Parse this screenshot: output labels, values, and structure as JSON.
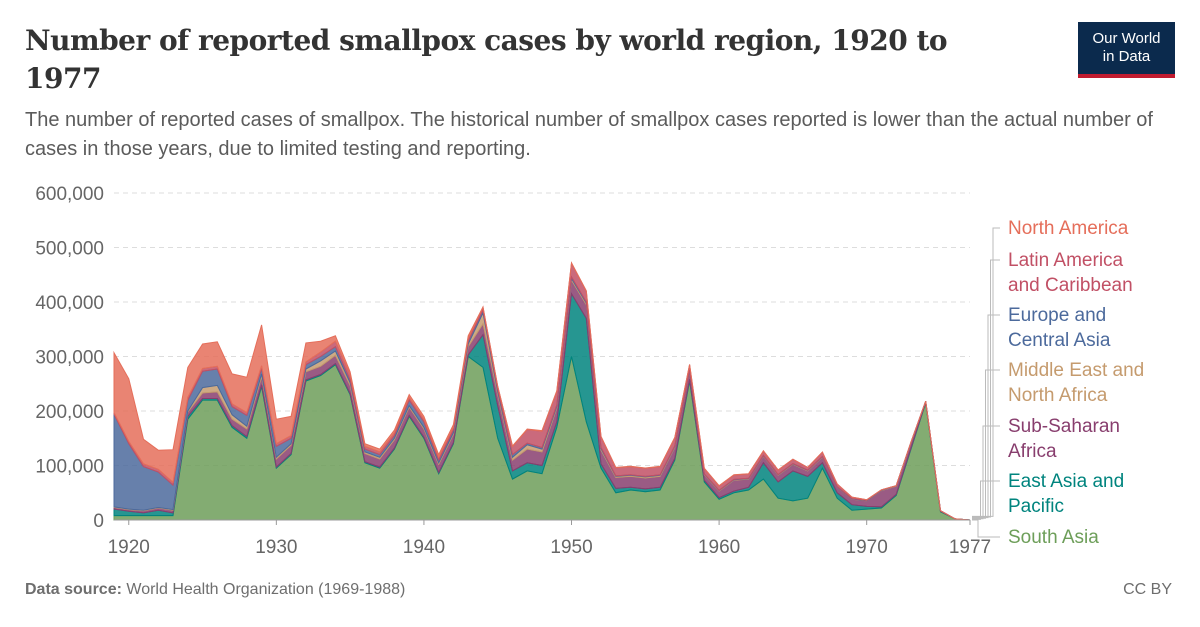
{
  "header": {
    "title": "Number of reported smallpox cases by world region, 1920 to 1977",
    "subtitle": "The number of reported cases of smallpox. The historical number of smallpox cases reported is lower than the actual number of cases in those years, due to limited testing and reporting.",
    "logo_line1": "Our World",
    "logo_line2": "in Data"
  },
  "footer": {
    "source_label": "Data source:",
    "source_text": "World Health Organization (1969-1988)",
    "license": "CC BY"
  },
  "chart_data": {
    "type": "area",
    "stacked": true,
    "title": "Number of reported smallpox cases by world region, 1920 to 1977",
    "xlabel": "",
    "ylabel": "",
    "xlim": [
      1919,
      1977
    ],
    "ylim": [
      0,
      600000
    ],
    "y_ticks": [
      0,
      100000,
      200000,
      300000,
      400000,
      500000,
      600000
    ],
    "y_tick_labels": [
      "0",
      "100,000",
      "200,000",
      "300,000",
      "400,000",
      "500,000",
      "600,000"
    ],
    "x_ticks": [
      1920,
      1930,
      1940,
      1950,
      1960,
      1970,
      1977
    ],
    "x_tick_labels": [
      "1920",
      "1930",
      "1940",
      "1950",
      "1960",
      "1970",
      "1977"
    ],
    "grid": "horizontal dashed",
    "legend_position": "right",
    "x": [
      1919,
      1920,
      1921,
      1922,
      1923,
      1924,
      1925,
      1926,
      1927,
      1928,
      1929,
      1930,
      1931,
      1932,
      1933,
      1934,
      1935,
      1936,
      1937,
      1938,
      1939,
      1940,
      1941,
      1942,
      1943,
      1944,
      1945,
      1946,
      1947,
      1948,
      1949,
      1950,
      1951,
      1952,
      1953,
      1954,
      1955,
      1956,
      1957,
      1958,
      1959,
      1960,
      1961,
      1962,
      1963,
      1964,
      1965,
      1966,
      1967,
      1968,
      1969,
      1970,
      1971,
      1972,
      1973,
      1974,
      1975,
      1976,
      1977
    ],
    "series": [
      {
        "name": "South Asia",
        "color": "#6d9e59",
        "values": [
          8000,
          8000,
          8000,
          8000,
          8000,
          185000,
          220000,
          220000,
          170000,
          150000,
          245000,
          95000,
          120000,
          255000,
          265000,
          285000,
          230000,
          105000,
          95000,
          130000,
          190000,
          150000,
          85000,
          140000,
          300000,
          280000,
          150000,
          75000,
          90000,
          85000,
          170000,
          300000,
          180000,
          95000,
          50000,
          55000,
          52000,
          55000,
          110000,
          255000,
          70000,
          38000,
          50000,
          55000,
          75000,
          40000,
          35000,
          40000,
          95000,
          40000,
          18000,
          20000,
          22000,
          45000,
          130000,
          215000,
          15000,
          2000,
          0
        ]
      },
      {
        "name": "East Asia and Pacific",
        "color": "#00847e",
        "values": [
          12000,
          8000,
          5000,
          10000,
          5000,
          5000,
          3000,
          3000,
          3000,
          3000,
          3000,
          2000,
          2000,
          2000,
          2000,
          2000,
          2000,
          2000,
          2000,
          2000,
          2000,
          2000,
          2000,
          2000,
          3000,
          60000,
          60000,
          15000,
          15000,
          15000,
          10000,
          115000,
          190000,
          8000,
          8000,
          5000,
          5000,
          5000,
          3000,
          3000,
          3000,
          3000,
          3000,
          5000,
          30000,
          30000,
          55000,
          40000,
          10000,
          10000,
          10000,
          5000,
          2000,
          2000,
          2000,
          1000,
          1000,
          0,
          0
        ]
      },
      {
        "name": "Sub-Saharan Africa",
        "color": "#883e6e",
        "values": [
          3000,
          3000,
          4000,
          4000,
          5000,
          8000,
          10000,
          12000,
          12000,
          14000,
          15000,
          15000,
          15000,
          15000,
          15000,
          15000,
          15000,
          15000,
          15000,
          15000,
          15000,
          15000,
          15000,
          15000,
          15000,
          20000,
          20000,
          20000,
          25000,
          25000,
          25000,
          25000,
          25000,
          25000,
          20000,
          20000,
          20000,
          20000,
          20000,
          15000,
          10000,
          12000,
          20000,
          15000,
          12000,
          12000,
          12000,
          10000,
          10000,
          10000,
          10000,
          10000,
          30000,
          15000,
          10000,
          2000,
          1000,
          0,
          0
        ]
      },
      {
        "name": "Middle East and North Africa",
        "color": "#c59b6e",
        "values": [
          1000,
          1000,
          1000,
          1000,
          1000,
          2000,
          10000,
          12000,
          8000,
          5000,
          5000,
          3000,
          3000,
          5000,
          10000,
          8000,
          5000,
          3000,
          3000,
          3000,
          3000,
          3000,
          3000,
          3000,
          5000,
          20000,
          5000,
          5000,
          8000,
          5000,
          3000,
          3000,
          3000,
          3000,
          2000,
          2000,
          2000,
          2000,
          2000,
          1000,
          1000,
          1000,
          1000,
          1000,
          1000,
          1000,
          1000,
          1000,
          1000,
          500,
          500,
          500,
          500,
          500,
          500,
          0,
          0,
          0,
          0
        ]
      },
      {
        "name": "Europe and Central Asia",
        "color": "#4c6a9c",
        "values": [
          170000,
          120000,
          80000,
          65000,
          45000,
          20000,
          30000,
          30000,
          15000,
          20000,
          10000,
          20000,
          10000,
          8000,
          8000,
          8000,
          5000,
          5000,
          5000,
          5000,
          10000,
          10000,
          5000,
          5000,
          5000,
          5000,
          5000,
          5000,
          3000,
          3000,
          3000,
          3000,
          2000,
          2000,
          1000,
          1000,
          1000,
          1000,
          1000,
          1000,
          500,
          500,
          500,
          500,
          500,
          500,
          500,
          500,
          500,
          500,
          500,
          500,
          500,
          500,
          500,
          0,
          0,
          0,
          0
        ]
      },
      {
        "name": "Latin America and Caribbean",
        "color": "#c15065",
        "values": [
          3000,
          4000,
          5000,
          5000,
          5000,
          5000,
          5000,
          5000,
          5000,
          5000,
          5000,
          5000,
          5000,
          5000,
          8000,
          10000,
          10000,
          5000,
          5000,
          5000,
          5000,
          5000,
          5000,
          5000,
          5000,
          5000,
          5000,
          15000,
          25000,
          30000,
          25000,
          25000,
          20000,
          20000,
          15000,
          15000,
          15000,
          15000,
          15000,
          10000,
          10000,
          8000,
          8000,
          8000,
          8000,
          8000,
          8000,
          5000,
          8000,
          5000,
          3000,
          1000,
          500,
          0,
          0,
          0,
          0,
          0,
          0
        ]
      },
      {
        "name": "North America",
        "color": "#e56e5a",
        "values": [
          110000,
          115000,
          45000,
          35000,
          60000,
          55000,
          45000,
          45000,
          55000,
          65000,
          75000,
          45000,
          35000,
          35000,
          20000,
          10000,
          5000,
          5000,
          5000,
          5000,
          5000,
          5000,
          5000,
          5000,
          5000,
          1000,
          1000,
          1000,
          1000,
          1000,
          1000,
          1000,
          500,
          500,
          500,
          500,
          500,
          500,
          500,
          500,
          500,
          500,
          500,
          500,
          500,
          500,
          0,
          0,
          0,
          0,
          0,
          0,
          0,
          0,
          0,
          0,
          0,
          0,
          0
        ]
      }
    ]
  }
}
